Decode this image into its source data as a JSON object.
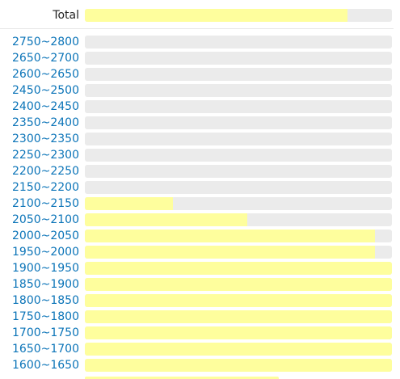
{
  "colors": {
    "fill": "#fefe9d",
    "track": "#ebebeb",
    "range_label": "#0b74b8",
    "total_label": "#222222"
  },
  "total": {
    "label": "Total",
    "fraction": 0.855
  },
  "ranges": [
    {
      "label": "2750~2800",
      "fraction": 0
    },
    {
      "label": "2650~2700",
      "fraction": 0
    },
    {
      "label": "2600~2650",
      "fraction": 0
    },
    {
      "label": "2450~2500",
      "fraction": 0
    },
    {
      "label": "2400~2450",
      "fraction": 0
    },
    {
      "label": "2350~2400",
      "fraction": 0
    },
    {
      "label": "2300~2350",
      "fraction": 0
    },
    {
      "label": "2250~2300",
      "fraction": 0
    },
    {
      "label": "2200~2250",
      "fraction": 0
    },
    {
      "label": "2150~2200",
      "fraction": 0
    },
    {
      "label": "2100~2150",
      "fraction": 0.287
    },
    {
      "label": "2050~2100",
      "fraction": 0.529
    },
    {
      "label": "2000~2050",
      "fraction": 0.945
    },
    {
      "label": "1950~2000",
      "fraction": 0.945
    },
    {
      "label": "1900~1950",
      "fraction": 1
    },
    {
      "label": "1850~1900",
      "fraction": 1
    },
    {
      "label": "1800~1850",
      "fraction": 1
    },
    {
      "label": "1750~1800",
      "fraction": 1
    },
    {
      "label": "1700~1750",
      "fraction": 1
    },
    {
      "label": "1650~1700",
      "fraction": 1
    },
    {
      "label": "1600~1650",
      "fraction": 1
    }
  ]
}
